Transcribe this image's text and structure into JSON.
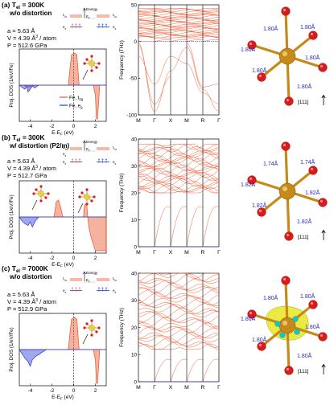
{
  "colors": {
    "t2g": "#e8542a",
    "eg": "#2a3bd8",
    "phonon": "#f2643a",
    "fe_atom": "#c58a1a",
    "o_atom": "#d81b1b",
    "bond_label": "#2a2ab8",
    "isosurface": "#e8e622",
    "spin_dot": "#19c4c8",
    "vline": "#000000"
  },
  "panels": [
    {
      "label": "(a)",
      "temperature": "T",
      "temp_sub": "el",
      "temp_value": " = 300K",
      "distortion": "w/o distortion",
      "lattice": "a = 5.63 Å",
      "volume_main": "V = 4.39 Å",
      "volume_exp": "3",
      "volume_tail": " / atom",
      "pressure": "P = 512.6 GPa",
      "energy_label": "Energy",
      "level_left_a": "t",
      "level_left_a_sub": "2g",
      "level_ef": "E",
      "level_ef_sub": "F",
      "level_right_a": "t",
      "level_right_a_sub": "2g",
      "level_left_b": "e",
      "level_left_b_sub": "g",
      "level_right_b": "e",
      "level_right_b_sub": "g",
      "legend": [
        {
          "name": "Fe, t",
          "sub": "2g",
          "color_key": "t2g"
        },
        {
          "name": "Fe, e",
          "sub": "g",
          "color_key": "eg"
        }
      ],
      "bond_labels": [
        "1.80Å",
        "1.80Å",
        "1.80Å",
        "1.80Å",
        "1.80Å",
        "1.80Å"
      ],
      "direction": "[111]"
    },
    {
      "label": "(b)",
      "temperature": "T",
      "temp_sub": "el",
      "temp_value": " = 300K",
      "distortion": "w/ distortion (P2/m)",
      "lattice": "a = 5.63 Å",
      "volume_main": "V = 4.39 Å",
      "volume_exp": "3",
      "volume_tail": " / atom",
      "pressure": "P = 512.7 GPa",
      "energy_label": "Energy",
      "level_left_a": "a",
      "level_left_a_sub": "1g",
      "level_ef": "E",
      "level_ef_sub": "F",
      "level_right_a": "t",
      "level_right_a_sub": "2g",
      "level_left_b": "e",
      "level_left_b_sub": "g",
      "level_left_c": "e",
      "level_left_c_sub": "g",
      "level_right_b": "e",
      "level_right_b_sub": "g",
      "bond_labels": [
        "1.74Å",
        "1.82Å",
        "1.82Å",
        "1.82Å",
        "1.82Å",
        "1.74Å"
      ],
      "direction": "[111]"
    },
    {
      "label": "(c)",
      "temperature": "T",
      "temp_sub": "el",
      "temp_value": " = 7000K",
      "distortion": "w/o distortion",
      "lattice": "a = 5.63 Å",
      "volume_main": "V = 4.39 Å",
      "volume_exp": "3",
      "volume_tail": " / atom",
      "pressure": "P = 512.9 GPa",
      "energy_label": "Energy",
      "level_left_a": "t",
      "level_left_a_sub": "2g",
      "level_ef": "E",
      "level_ef_sub": "F",
      "level_right_a": "t",
      "level_right_a_sub": "2g",
      "level_left_b": "e",
      "level_left_b_sub": "g",
      "level_right_b": "e",
      "level_right_b_sub": "g",
      "bond_labels": [
        "1.80Å",
        "1.80Å",
        "1.80Å",
        "1.80Å",
        "1.80Å",
        "1.80Å"
      ],
      "direction": "[111]"
    }
  ],
  "chart_data": [
    {
      "type": "area",
      "panel": "(a)",
      "ylabel": "Proj. DOS (1/eV/Fe)",
      "xlabel": "E-E",
      "xlabel_sub": "F",
      "xlabel_tail": " (eV)",
      "xlim": [
        -5,
        3
      ],
      "xticks": [
        "-4",
        "-2",
        "0",
        "2"
      ],
      "xtick_values": [
        -4,
        -2,
        0,
        2
      ],
      "ylim": [
        -1,
        1
      ],
      "series": [
        {
          "name": "Fe, t2g",
          "color_key": "t2g",
          "x": [
            -5,
            -4.6,
            -4.2,
            -3.9,
            -3.6,
            -3.2,
            -2.0,
            -0.5,
            -0.2,
            0.1,
            0.3,
            0.5,
            1.0,
            1.8,
            2.0,
            2.1,
            2.2,
            2.4,
            3.0
          ],
          "y": [
            0,
            0,
            -0.05,
            -0.05,
            0,
            0,
            0,
            0,
            0.9,
            0.95,
            0.9,
            0,
            0,
            0,
            -0.3,
            -1,
            -1,
            0,
            0
          ]
        },
        {
          "name": "Fe, eg",
          "color_key": "eg",
          "x": [
            -5,
            -4.8,
            -4.5,
            -4.3,
            -4.2,
            -4.0,
            -3.8,
            -3.6,
            -3.4,
            -3.2,
            -3.0,
            -2.8,
            -2.0,
            3.0
          ],
          "y": [
            0,
            -0.05,
            -0.12,
            -0.05,
            -0.2,
            -0.12,
            -0.02,
            -0.08,
            -0.04,
            0,
            0,
            0,
            0,
            0
          ]
        }
      ]
    },
    {
      "type": "line",
      "panel": "(a)",
      "ylabel": "Frequency (THz)",
      "categories": [
        "M",
        "Γ",
        "X",
        "M",
        "R",
        "Γ"
      ],
      "ylim": [
        -100,
        50
      ],
      "yticks": [
        "-100",
        "-50",
        "0",
        "50"
      ],
      "ytick_values": [
        -100,
        -50,
        0,
        50
      ],
      "band_range": [
        5,
        45
      ],
      "imaginary_branches": [
        {
          "x": [
            0,
            1
          ],
          "y": [
            -2,
            -95
          ]
        },
        {
          "x": [
            0,
            1
          ],
          "y": [
            -5,
            -85
          ]
        },
        {
          "x": [
            0,
            1
          ],
          "y": [
            -20,
            -58
          ]
        },
        {
          "x": [
            1,
            2
          ],
          "y": [
            -95,
            -40
          ]
        },
        {
          "x": [
            1,
            2
          ],
          "y": [
            -85,
            -48
          ]
        },
        {
          "x": [
            1,
            2
          ],
          "y": [
            -58,
            -20
          ]
        },
        {
          "x": [
            2,
            3
          ],
          "y": [
            -40,
            -8
          ]
        },
        {
          "x": [
            2,
            3
          ],
          "y": [
            -20,
            -30
          ]
        },
        {
          "x": [
            3,
            4
          ],
          "y": [
            -8,
            -65
          ]
        },
        {
          "x": [
            3,
            4
          ],
          "y": [
            -30,
            -70
          ]
        },
        {
          "x": [
            3,
            4
          ],
          "y": [
            -2,
            -62
          ]
        },
        {
          "x": [
            4,
            5
          ],
          "y": [
            -65,
            -95
          ]
        },
        {
          "x": [
            4,
            5
          ],
          "y": [
            -70,
            -85
          ]
        },
        {
          "x": [
            4,
            5
          ],
          "y": [
            -62,
            -58
          ]
        }
      ]
    },
    {
      "type": "area",
      "panel": "(b)",
      "ylabel": "Proj. DOS (1/eV/Fe)",
      "xlabel": "E-E",
      "xlabel_sub": "F",
      "xlabel_tail": " (eV)",
      "xlim": [
        -5,
        3
      ],
      "xticks": [
        "-4",
        "-2",
        "0",
        "2"
      ],
      "xtick_values": [
        -4,
        -2,
        0,
        2
      ],
      "ylim": [
        -1,
        1
      ],
      "series": [
        {
          "name": "Fe, t2g",
          "color_key": "t2g",
          "x": [
            -5,
            -3,
            -1.8,
            -1.6,
            -1.4,
            -1.2,
            -1.0,
            -0.6,
            0.4,
            0.9,
            1.0,
            1.2,
            1.3,
            1.4,
            1.6,
            2.0,
            3.0
          ],
          "y": [
            0,
            0,
            0,
            0.45,
            0.5,
            0.3,
            0,
            0,
            0,
            0,
            0.35,
            0.4,
            0,
            -0.3,
            -0.6,
            -1,
            -1
          ]
        },
        {
          "name": "Fe, eg",
          "color_key": "eg",
          "x": [
            -5,
            -4.8,
            -4.5,
            -4.2,
            -4.0,
            -3.8,
            -3.5,
            -3.2,
            -3.0,
            3.0
          ],
          "y": [
            0,
            -0.1,
            -0.2,
            -0.25,
            -0.15,
            -0.3,
            -0.1,
            0,
            0,
            0
          ]
        }
      ]
    },
    {
      "type": "line",
      "panel": "(b)",
      "ylabel": "Frequency (THz)",
      "categories": [
        "M",
        "Γ",
        "X",
        "M",
        "R",
        "Γ"
      ],
      "ylim": [
        0,
        40
      ],
      "yticks": [
        "0",
        "10",
        "20",
        "30",
        "40"
      ],
      "ytick_values": [
        0,
        10,
        20,
        30,
        40
      ],
      "band_range": [
        20,
        38
      ],
      "imaginary_branches": []
    },
    {
      "type": "area",
      "panel": "(c)",
      "ylabel": "Proj. DOS (1/eV/Fe)",
      "xlabel": "E-E",
      "xlabel_sub": "F",
      "xlabel_tail": " (eV)",
      "xlim": [
        -5,
        3
      ],
      "xticks": [
        "-4",
        "-2",
        "0",
        "2"
      ],
      "xtick_values": [
        -4,
        -2,
        0,
        2
      ],
      "ylim": [
        -1,
        1
      ],
      "series": [
        {
          "name": "Fe, t2g",
          "color_key": "t2g",
          "x": [
            -5,
            -3,
            -0.5,
            -0.2,
            0.1,
            0.3,
            0.5,
            1.8,
            2.0,
            2.1,
            2.2,
            2.4,
            3.0
          ],
          "y": [
            0,
            0,
            0,
            0.9,
            0.95,
            0.9,
            0,
            0,
            -0.3,
            -1,
            -1,
            0,
            0
          ]
        },
        {
          "name": "Fe, eg",
          "color_key": "eg",
          "x": [
            -5,
            -4.8,
            -4.5,
            -4.2,
            -4.0,
            -3.8,
            -3.5,
            -3.2,
            -3.0,
            -2.5,
            -2.0,
            3.0
          ],
          "y": [
            0,
            -0.1,
            -0.25,
            -0.35,
            -0.5,
            -0.3,
            -0.2,
            -0.15,
            -0.1,
            0,
            0,
            0
          ]
        }
      ]
    },
    {
      "type": "line",
      "panel": "(c)",
      "ylabel": "Frequency (THz)",
      "categories": [
        "M",
        "Γ",
        "X",
        "M",
        "R",
        "Γ"
      ],
      "ylim": [
        0,
        40
      ],
      "yticks": [
        "0",
        "10",
        "20",
        "30",
        "40"
      ],
      "ytick_values": [
        0,
        10,
        20,
        30,
        40
      ],
      "band_range": [
        12,
        40
      ],
      "imaginary_branches": []
    }
  ]
}
